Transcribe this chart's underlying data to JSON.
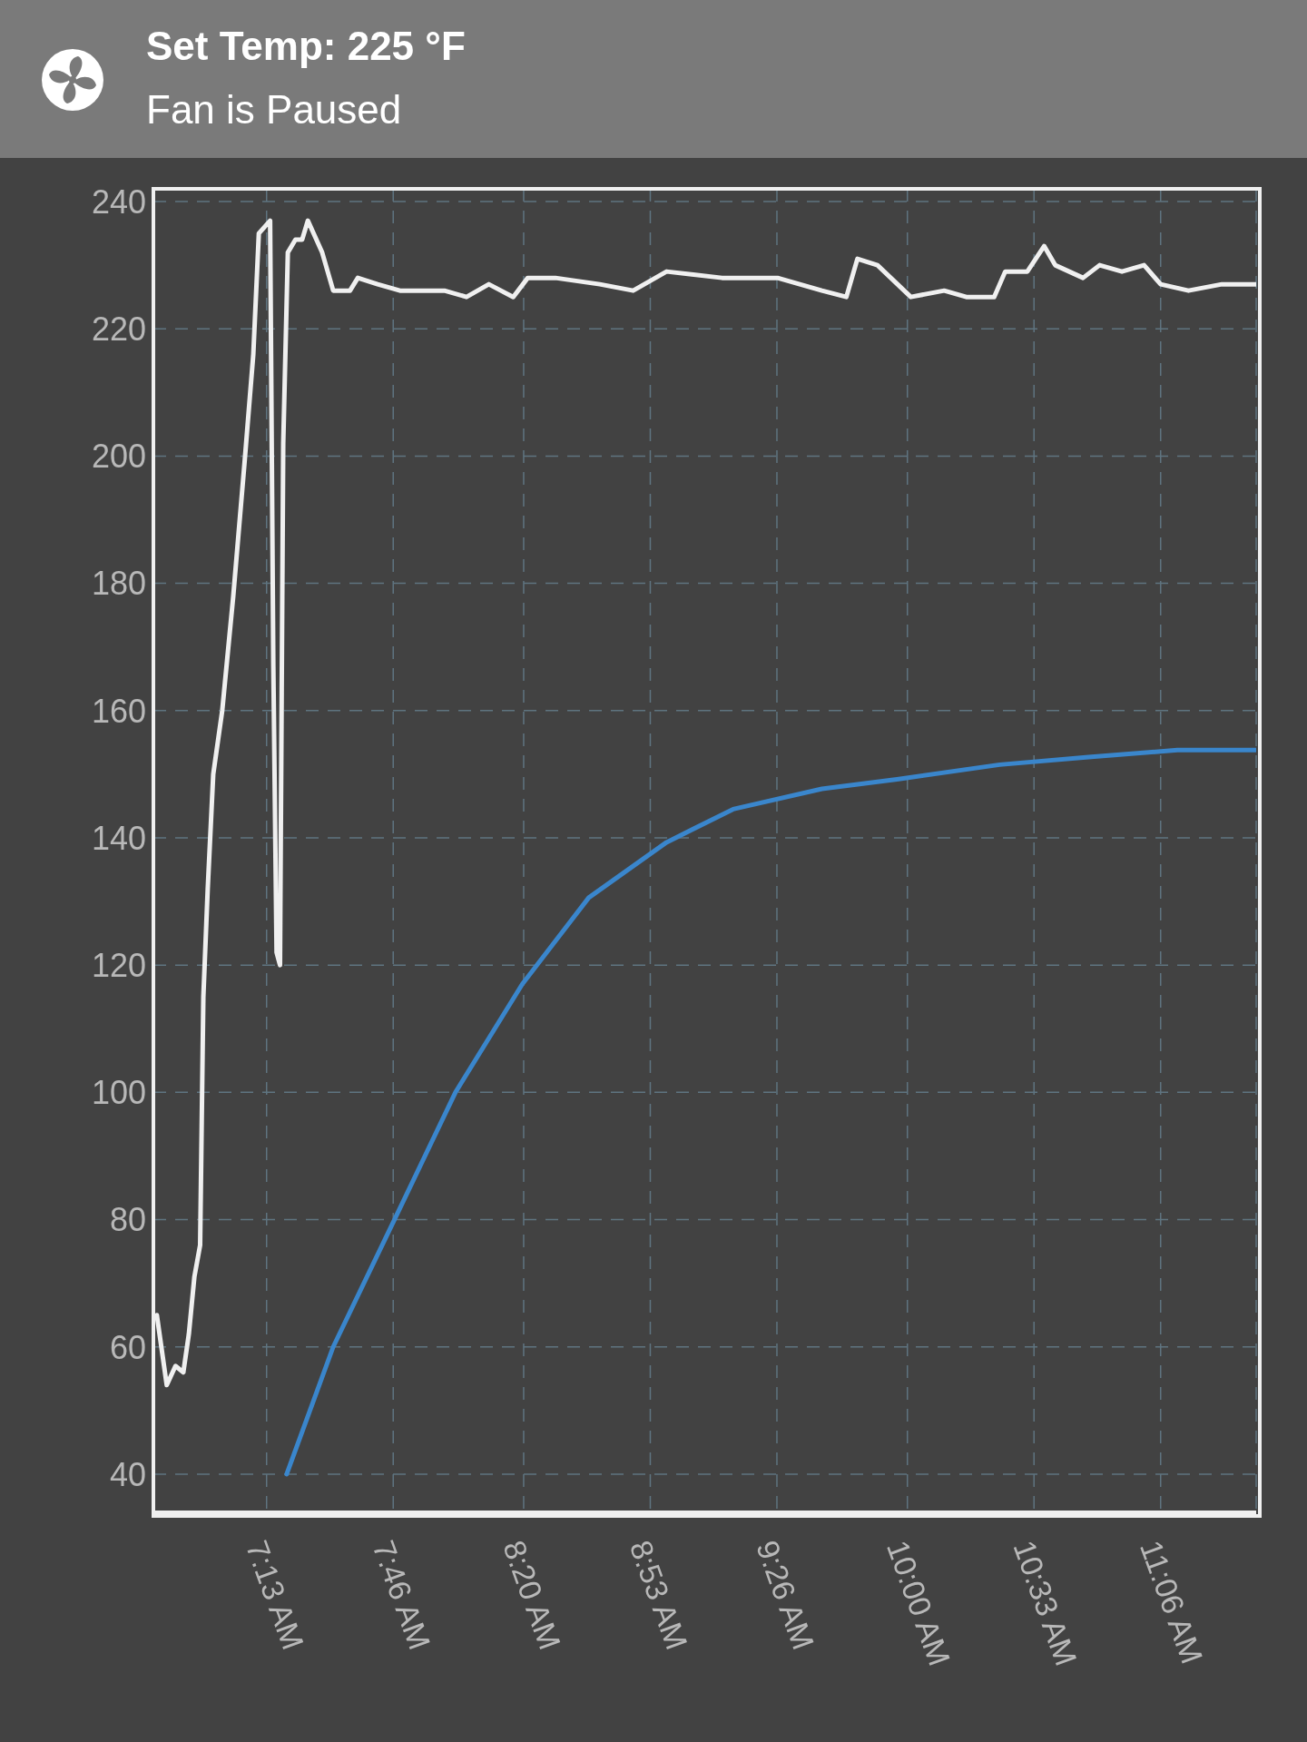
{
  "chart_data": {
    "type": "line",
    "title": "Set Temp: 225 °F",
    "subtitle": "Fan is Paused",
    "xlim": [
      6.725,
      11.515
    ],
    "ylim": [
      34,
      242
    ],
    "xticks": [
      {
        "value": 7.2167,
        "label": "7:13 AM"
      },
      {
        "value": 7.7667,
        "label": "7:46 AM"
      },
      {
        "value": 8.3333,
        "label": "8:20 AM"
      },
      {
        "value": 8.8833,
        "label": "8:53 AM"
      },
      {
        "value": 9.4333,
        "label": "9:26 AM"
      },
      {
        "value": 10.0,
        "label": "10:00 AM"
      },
      {
        "value": 10.55,
        "label": "10:33 AM"
      },
      {
        "value": 11.1,
        "label": "11:06 AM"
      }
    ],
    "yticks": [
      40,
      60,
      80,
      100,
      120,
      140,
      160,
      180,
      200,
      220,
      240
    ],
    "grid": true,
    "legend": false,
    "marker": "none",
    "line_style": "solid",
    "series": [
      {
        "color": "#f0f0f0",
        "x": [
          6.74,
          6.783,
          6.821,
          6.855,
          6.879,
          6.903,
          6.928,
          6.942,
          6.961,
          6.985,
          7.024,
          7.072,
          7.121,
          7.159,
          7.183,
          7.232,
          7.246,
          7.26,
          7.275,
          7.289,
          7.309,
          7.342,
          7.371,
          7.396,
          7.458,
          7.506,
          7.579,
          7.613,
          7.699,
          7.796,
          7.989,
          8.085,
          8.182,
          8.288,
          8.351,
          8.471,
          8.664,
          8.809,
          8.954,
          9.195,
          9.436,
          9.629,
          9.735,
          9.783,
          9.87,
          10.015,
          10.16,
          10.256,
          10.377,
          10.425,
          10.521,
          10.594,
          10.642,
          10.763,
          10.835,
          10.932,
          11.028,
          11.1,
          11.221,
          11.366,
          11.515
        ],
        "values": [
          65,
          54,
          57,
          56,
          62,
          71,
          76,
          115,
          132,
          150,
          160,
          178,
          199,
          216,
          235,
          237,
          167,
          122,
          120,
          202,
          232,
          234,
          234,
          237,
          232,
          226,
          226,
          228,
          227,
          226,
          226,
          225,
          227,
          225,
          228,
          228,
          227,
          226,
          229,
          228,
          228,
          226,
          225,
          231,
          230,
          225,
          226,
          225,
          225,
          229,
          229,
          233,
          230,
          228,
          230,
          229,
          230,
          227,
          226,
          227,
          227
        ]
      },
      {
        "color": "#3a86cc",
        "x": [
          7.304,
          7.506,
          7.772,
          8.037,
          8.327,
          8.616,
          8.954,
          9.243,
          9.629,
          9.955,
          10.401,
          10.787,
          11.173,
          11.515
        ],
        "values": [
          40,
          60,
          80,
          100,
          117,
          130.6,
          139.3,
          144.5,
          147.7,
          149.2,
          151.5,
          152.7,
          153.8,
          153.8
        ]
      }
    ]
  }
}
